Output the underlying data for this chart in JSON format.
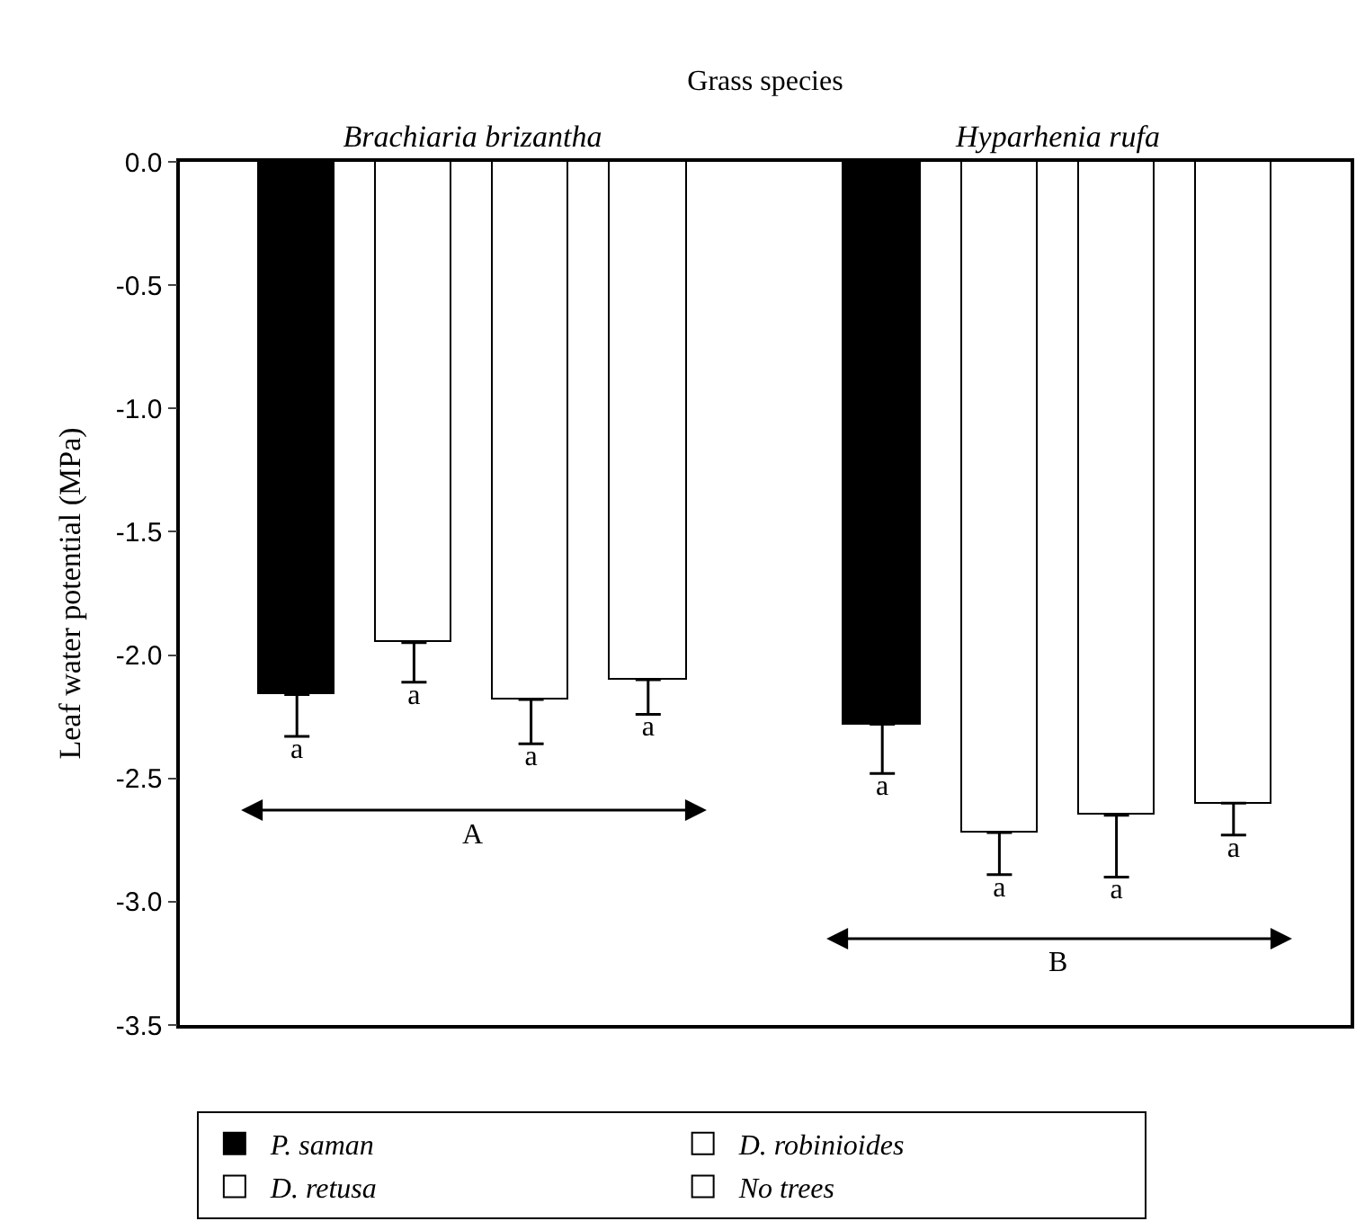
{
  "chart_data": {
    "type": "bar",
    "xlabel": "Grass species",
    "ylabel": "Leaf water potential (MPa)",
    "categories": [
      "Brachiaria brizantha",
      "Hyparhenia rufa"
    ],
    "series": [
      {
        "name": "P. saman",
        "color": "#000000",
        "values": [
          -2.16,
          -2.28
        ],
        "errors": [
          [
            -2.33,
            -2.16
          ],
          [
            -2.48,
            -2.28
          ]
        ],
        "value_labels": [
          "a",
          "a"
        ]
      },
      {
        "name": "D. retusa",
        "color": "#ffffff",
        "values": [
          -1.95,
          -2.72
        ],
        "errors": [
          [
            -2.11,
            -1.95
          ],
          [
            -2.89,
            -2.72
          ]
        ],
        "value_labels": [
          "a",
          "a"
        ]
      },
      {
        "name": "D. robinioides",
        "color": "#ffffff",
        "values": [
          -2.18,
          -2.65
        ],
        "errors": [
          [
            -2.36,
            -2.18
          ],
          [
            -2.9,
            -2.65
          ]
        ],
        "value_labels": [
          "a",
          "a"
        ]
      },
      {
        "name": "No trees",
        "color": "#ffffff",
        "values": [
          -2.1,
          -2.6
        ],
        "errors": [
          [
            -2.24,
            -2.1
          ],
          [
            -2.73,
            -2.6
          ]
        ],
        "value_labels": [
          "a",
          "a"
        ]
      }
    ],
    "ylim": [
      -3.5,
      0
    ],
    "yticks": [
      {
        "value": 0,
        "label": "0.0"
      },
      {
        "value": -0.5,
        "label": "-0.5"
      },
      {
        "value": -1,
        "label": "-1.0"
      },
      {
        "value": -1.5,
        "label": "-1.5"
      },
      {
        "value": -2,
        "label": "-2.0"
      },
      {
        "value": -2.5,
        "label": "-2.5"
      },
      {
        "value": -3,
        "label": "-3.0"
      },
      {
        "value": -3.5,
        "label": "-3.5"
      }
    ],
    "annotations": [
      "A",
      "B"
    ],
    "legend": "bottom"
  }
}
